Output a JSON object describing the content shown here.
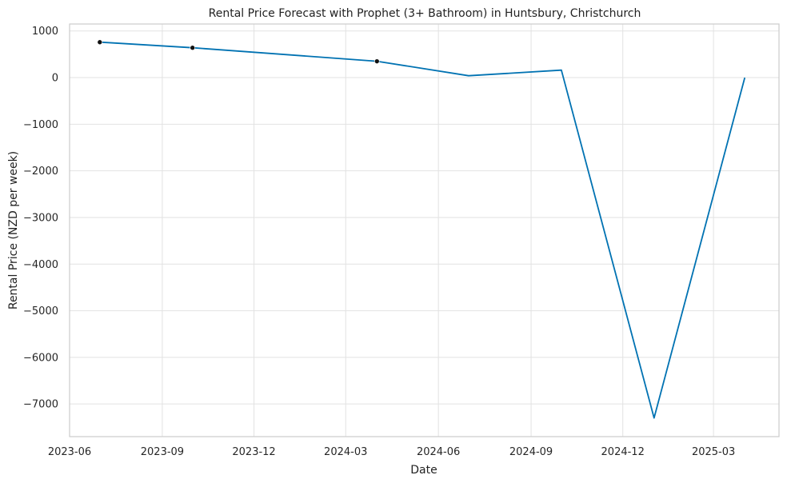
{
  "chart_data": {
    "type": "line",
    "title": "Rental Price Forecast with Prophet (3+ Bathroom) in Huntsbury, Christchurch",
    "xlabel": "Date",
    "ylabel": "Rental Price (NZD per week)",
    "x_axis_type": "date",
    "xlim": [
      "2023-06-01",
      "2025-05-05"
    ],
    "ylim": [
      -7700,
      1150
    ],
    "x_ticks": [
      "2023-06-01",
      "2023-09-01",
      "2023-12-01",
      "2024-03-01",
      "2024-06-01",
      "2024-09-01",
      "2024-12-01",
      "2025-03-01"
    ],
    "x_tick_labels": [
      "2023-06",
      "2023-09",
      "2023-12",
      "2024-03",
      "2024-06",
      "2024-09",
      "2024-12",
      "2025-03"
    ],
    "y_ticks": [
      1000,
      0,
      -1000,
      -2000,
      -3000,
      -4000,
      -5000,
      -6000,
      -7000
    ],
    "y_tick_labels": [
      "1000",
      "0",
      "−1000",
      "−2000",
      "−3000",
      "−4000",
      "−5000",
      "−6000",
      "−7000"
    ],
    "grid": true,
    "series": [
      {
        "kind": "forecast",
        "color": "#0072b2",
        "x": [
          "2023-07-01",
          "2023-10-01",
          "2024-04-01",
          "2024-07-01",
          "2024-10-01",
          "2025-01-01",
          "2025-04-01"
        ],
        "y": [
          760,
          640,
          350,
          40,
          160,
          -7300,
          0
        ]
      },
      {
        "kind": "observed",
        "color": "#111111",
        "x": [
          "2023-07-01",
          "2023-10-01",
          "2024-04-01"
        ],
        "y": [
          760,
          640,
          350
        ]
      }
    ]
  }
}
